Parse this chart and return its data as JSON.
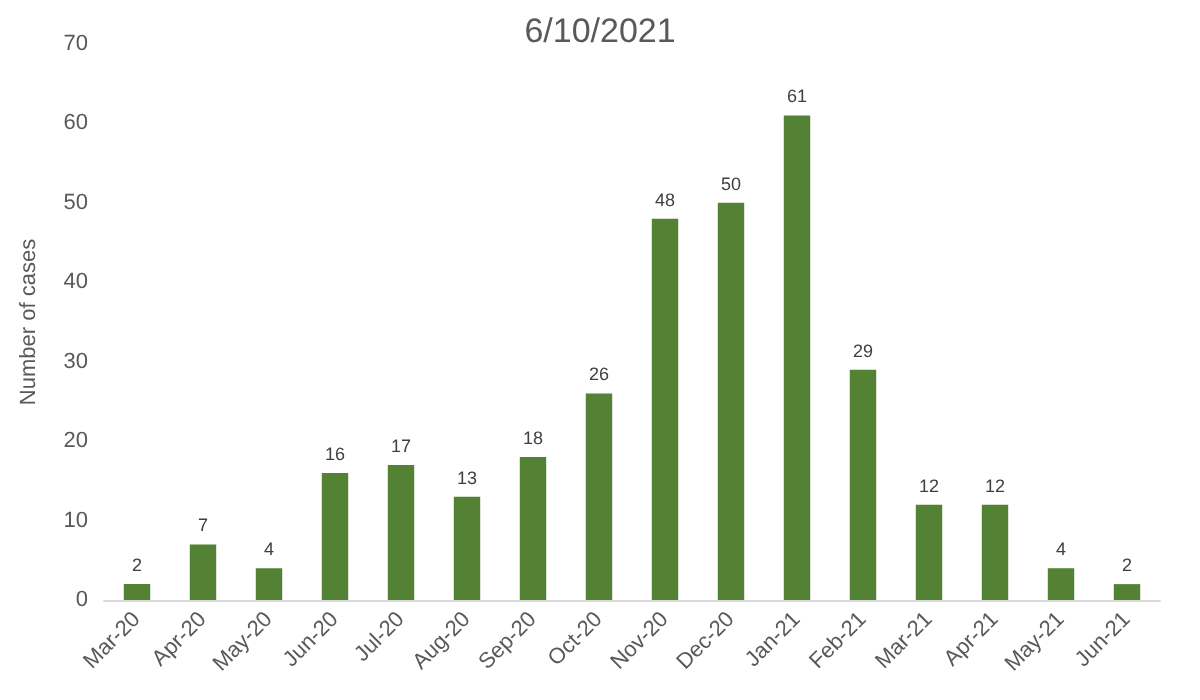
{
  "chart_data": {
    "type": "bar",
    "title": "6/10/2021",
    "ylabel": "Number of cases",
    "categories": [
      "Mar-20",
      "Apr-20",
      "May-20",
      "Jun-20",
      "Jul-20",
      "Aug-20",
      "Sep-20",
      "Oct-20",
      "Nov-20",
      "Dec-20",
      "Jan-21",
      "Feb-21",
      "Mar-21",
      "Apr-21",
      "May-21",
      "Jun-21"
    ],
    "values": [
      2,
      7,
      4,
      16,
      17,
      13,
      18,
      26,
      48,
      50,
      61,
      29,
      12,
      12,
      4,
      2
    ],
    "color": "#548235",
    "ylim": [
      0,
      70
    ],
    "yticks": [
      0,
      10,
      20,
      30,
      40,
      50,
      60,
      70
    ],
    "grid": false,
    "data_labels": true
  }
}
